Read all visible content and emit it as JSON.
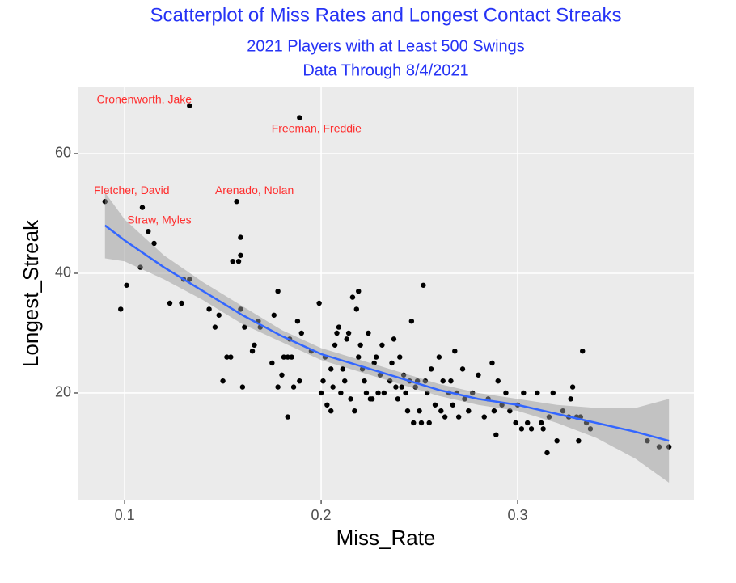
{
  "chart_data": {
    "type": "scatter",
    "title": "Scatterplot of Miss Rates and Longest Contact Streaks",
    "subtitle": [
      "2021 Players with at Least 500 Swings",
      "Data Through 8/4/2021"
    ],
    "x_label": "Miss_Rate",
    "y_label": "Longest_Streak",
    "xlim": [
      0.0765,
      0.3897
    ],
    "ylim": [
      2.16,
      71.08
    ],
    "xticks": [
      0.1,
      0.2,
      0.3
    ],
    "yticks": [
      20,
      40,
      60
    ],
    "grid": true,
    "color": "#000000",
    "x": [
      0.09,
      0.098,
      0.101,
      0.108,
      0.109,
      0.112,
      0.115,
      0.123,
      0.129,
      0.13,
      0.133,
      0.133,
      0.143,
      0.146,
      0.148,
      0.15,
      0.152,
      0.154,
      0.155,
      0.157,
      0.158,
      0.159,
      0.159,
      0.159,
      0.16,
      0.161,
      0.165,
      0.166,
      0.168,
      0.169,
      0.175,
      0.176,
      0.178,
      0.178,
      0.18,
      0.181,
      0.183,
      0.183,
      0.184,
      0.185,
      0.186,
      0.188,
      0.189,
      0.189,
      0.19,
      0.195,
      0.199,
      0.2,
      0.201,
      0.202,
      0.203,
      0.205,
      0.205,
      0.206,
      0.207,
      0.208,
      0.209,
      0.21,
      0.211,
      0.212,
      0.213,
      0.214,
      0.215,
      0.216,
      0.217,
      0.218,
      0.219,
      0.219,
      0.22,
      0.221,
      0.222,
      0.223,
      0.224,
      0.225,
      0.226,
      0.227,
      0.228,
      0.229,
      0.23,
      0.231,
      0.232,
      0.235,
      0.236,
      0.237,
      0.238,
      0.239,
      0.24,
      0.241,
      0.242,
      0.243,
      0.244,
      0.245,
      0.246,
      0.247,
      0.248,
      0.249,
      0.25,
      0.251,
      0.252,
      0.253,
      0.254,
      0.255,
      0.256,
      0.258,
      0.26,
      0.261,
      0.262,
      0.263,
      0.265,
      0.266,
      0.267,
      0.268,
      0.269,
      0.27,
      0.272,
      0.273,
      0.275,
      0.277,
      0.28,
      0.283,
      0.285,
      0.287,
      0.288,
      0.289,
      0.29,
      0.292,
      0.294,
      0.296,
      0.299,
      0.3,
      0.302,
      0.303,
      0.305,
      0.307,
      0.31,
      0.312,
      0.313,
      0.315,
      0.316,
      0.318,
      0.32,
      0.323,
      0.326,
      0.327,
      0.328,
      0.33,
      0.331,
      0.332,
      0.333,
      0.335,
      0.337,
      0.366,
      0.372,
      0.377
    ],
    "y": [
      52,
      34,
      38,
      41,
      51,
      47,
      45,
      35,
      35,
      39,
      39,
      68,
      34,
      31,
      33,
      22,
      26,
      26,
      42,
      52,
      42,
      34,
      43,
      46,
      21,
      31,
      27,
      28,
      32,
      31,
      25,
      33,
      37,
      21,
      23,
      26,
      16,
      26,
      29,
      26,
      21,
      32,
      66,
      22,
      30,
      27,
      35,
      20,
      22,
      26,
      18,
      24,
      17,
      21,
      28,
      30,
      31,
      20,
      24,
      22,
      29,
      30,
      19,
      36,
      17,
      34,
      26,
      37,
      28,
      24,
      22,
      20,
      30,
      19,
      19,
      25,
      26,
      20,
      23,
      28,
      20,
      22,
      25,
      29,
      21,
      19,
      26,
      21,
      23,
      20,
      17,
      22,
      32,
      15,
      21,
      22,
      17,
      15,
      38,
      22,
      20,
      15,
      24,
      18,
      26,
      17,
      22,
      16,
      20,
      22,
      18,
      27,
      20,
      16,
      24,
      19,
      17,
      20,
      23,
      16,
      19,
      25,
      17,
      13,
      22,
      18,
      20,
      17,
      15,
      18,
      14,
      20,
      15,
      14,
      20,
      15,
      14,
      10,
      16,
      20,
      12,
      17,
      16,
      19,
      21,
      16,
      12,
      16,
      27,
      15,
      14,
      12,
      11,
      11
    ],
    "annotations": [
      {
        "text": "Cronenworth, Jake",
        "x": 0.133,
        "y": 68
      },
      {
        "text": "Freeman, Freddie",
        "x": 0.189,
        "y": 66
      },
      {
        "text": "Fletcher, David",
        "x": 0.09,
        "y": 52
      },
      {
        "text": "Arenado, Nolan",
        "x": 0.157,
        "y": 52
      },
      {
        "text": "Straw, Myles",
        "x": 0.109,
        "y": 51
      }
    ],
    "annotation_color": "#ff2d2d",
    "smooth": {
      "color": "#3366ff",
      "band_color": "#999999",
      "x": [
        0.09,
        0.1,
        0.12,
        0.14,
        0.16,
        0.18,
        0.2,
        0.22,
        0.24,
        0.26,
        0.28,
        0.3,
        0.32,
        0.34,
        0.36,
        0.377
      ],
      "y": [
        48,
        45.5,
        41,
        37,
        33,
        29.5,
        26.5,
        24.5,
        22.5,
        20.5,
        19,
        18,
        16.5,
        15,
        13.5,
        12
      ],
      "ymin": [
        42.5,
        42,
        39,
        35.5,
        31.5,
        28.5,
        25.5,
        23.5,
        21.5,
        19.5,
        18,
        17,
        15,
        12.5,
        9,
        5
      ],
      "ymax": [
        53.5,
        49,
        43,
        38.5,
        34.5,
        30.5,
        27.5,
        25.5,
        23.5,
        21.5,
        20,
        19,
        18,
        17.5,
        17.5,
        19
      ]
    }
  }
}
